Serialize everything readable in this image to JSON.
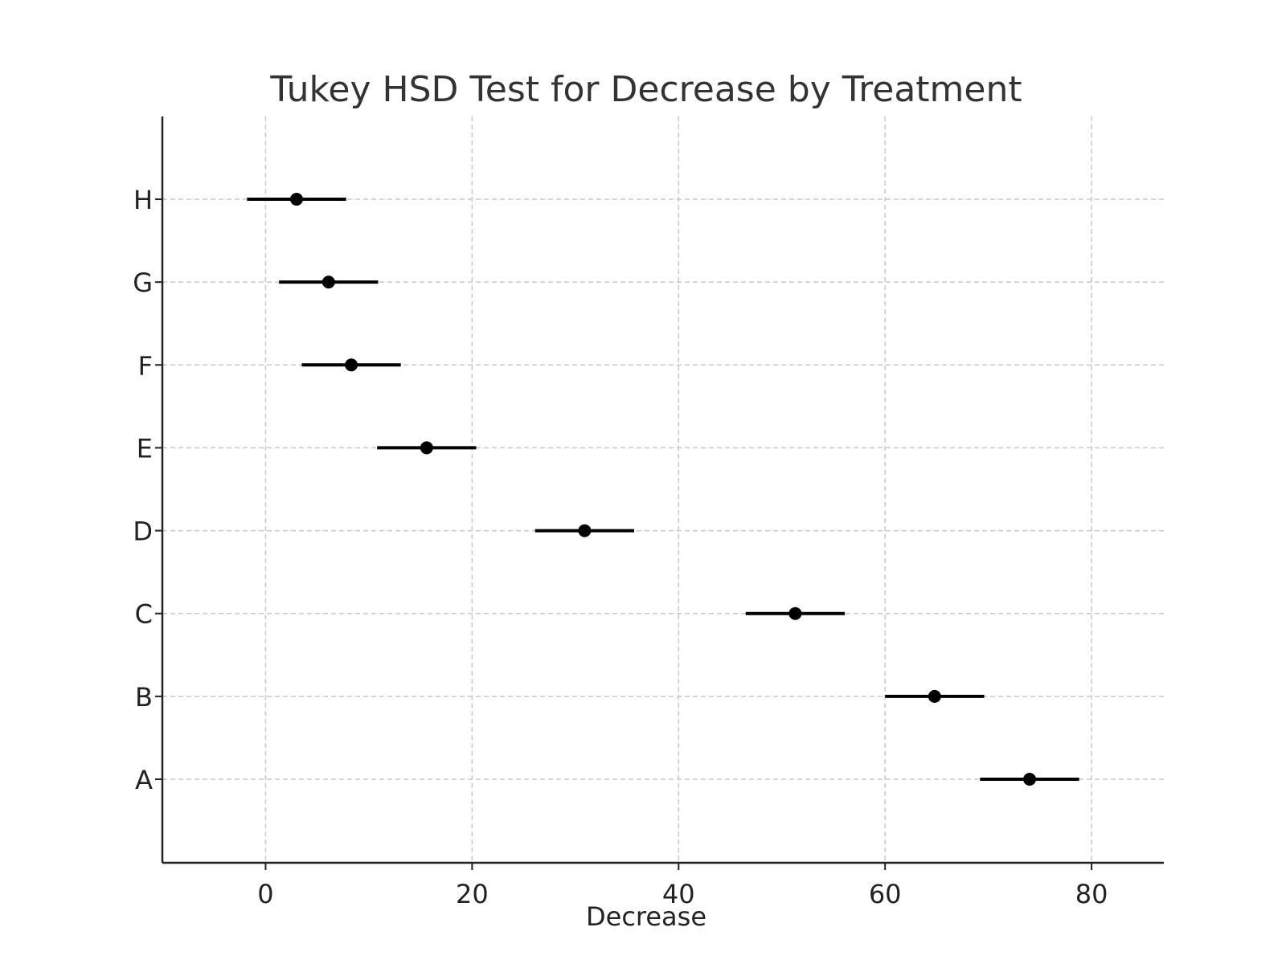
{
  "chart_data": {
    "type": "scatter",
    "title": "Tukey HSD Test for Decrease by Treatment",
    "xlabel": "Decrease",
    "ylabel": "",
    "xlim": [
      -10,
      87
    ],
    "xticks": [
      "0",
      "20",
      "40",
      "60",
      "80"
    ],
    "grid": true,
    "categories": [
      "A",
      "B",
      "C",
      "D",
      "E",
      "F",
      "G",
      "H"
    ],
    "means": [
      74.0,
      64.8,
      51.3,
      30.9,
      15.6,
      8.3,
      6.1,
      3.0
    ],
    "ci_lower": [
      69.2,
      60.0,
      46.5,
      26.1,
      10.8,
      3.5,
      1.3,
      -1.8
    ],
    "ci_upper": [
      78.8,
      69.6,
      56.1,
      35.7,
      20.4,
      13.1,
      10.9,
      7.8
    ],
    "colors": {
      "marker": "#000000",
      "grid": "#c8c8c8",
      "title": "#333333"
    }
  }
}
